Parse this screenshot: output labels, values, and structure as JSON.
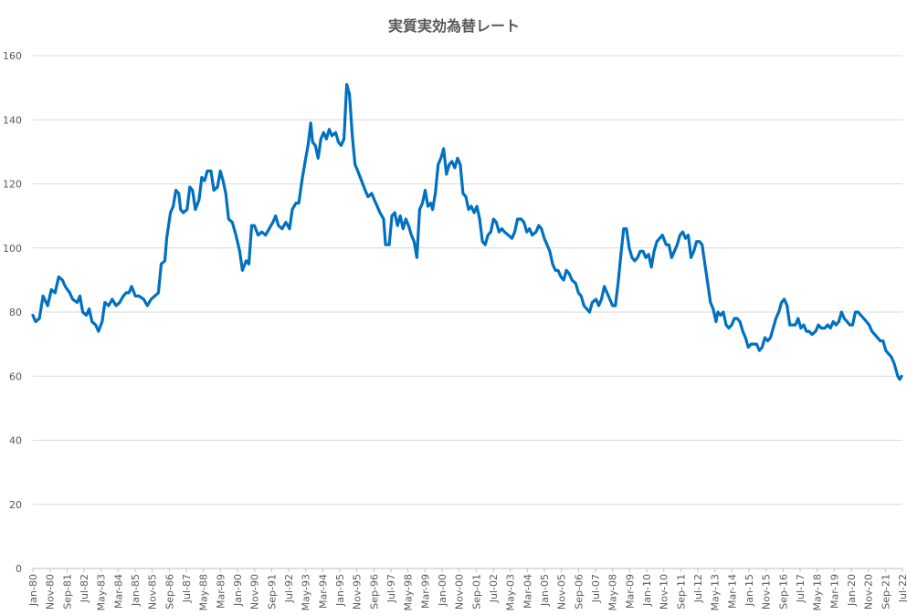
{
  "chart_data": {
    "type": "line",
    "title": "実質実効為替レート",
    "xlabel": "",
    "ylabel": "",
    "ylim": [
      0,
      160
    ],
    "yticks": [
      0,
      20,
      40,
      60,
      80,
      100,
      120,
      140,
      160
    ],
    "grid": true,
    "legend": "none",
    "series_color": "#0070c0",
    "xtick_labels": [
      "Jan-80",
      "Nov-80",
      "Sep-81",
      "Jul-82",
      "May-83",
      "Mar-84",
      "Jan-85",
      "Nov-85",
      "Sep-86",
      "Jul-87",
      "May-88",
      "Mar-89",
      "Jan-90",
      "Nov-90",
      "Sep-91",
      "Jul-92",
      "May-93",
      "Mar-94",
      "Jan-95",
      "Nov-95",
      "Sep-96",
      "Jul-97",
      "May-98",
      "Mar-99",
      "Jan-00",
      "Nov-00",
      "Sep-01",
      "Jul-02",
      "May-03",
      "Mar-04",
      "Jan-05",
      "Nov-05",
      "Sep-06",
      "Jul-07",
      "May-08",
      "Mar-09",
      "Jan-10",
      "Nov-10",
      "Sep-11",
      "Jul-12",
      "May-13",
      "Mar-14",
      "Jan-15",
      "Nov-15",
      "Sep-16",
      "Jul-17",
      "May-18",
      "Mar-19",
      "Jan-20",
      "Nov-20",
      "Sep-21",
      "Jul-22"
    ],
    "series": [
      {
        "values": [
          [
            1980.0,
            79
          ],
          [
            1980.15,
            77
          ],
          [
            1980.35,
            78
          ],
          [
            1980.55,
            85
          ],
          [
            1980.8,
            82
          ],
          [
            1981.0,
            87
          ],
          [
            1981.2,
            86
          ],
          [
            1981.4,
            91
          ],
          [
            1981.6,
            90
          ],
          [
            1981.75,
            88
          ],
          [
            1982.0,
            86
          ],
          [
            1982.15,
            84
          ],
          [
            1982.4,
            83
          ],
          [
            1982.55,
            85
          ],
          [
            1982.7,
            80
          ],
          [
            1982.9,
            79
          ],
          [
            1983.05,
            81
          ],
          [
            1983.2,
            77
          ],
          [
            1983.4,
            76
          ],
          [
            1983.55,
            74
          ],
          [
            1983.75,
            77
          ],
          [
            1983.9,
            83
          ],
          [
            1984.1,
            82
          ],
          [
            1984.3,
            84
          ],
          [
            1984.5,
            82
          ],
          [
            1984.7,
            83
          ],
          [
            1984.9,
            85
          ],
          [
            1985.05,
            86
          ],
          [
            1985.2,
            86
          ],
          [
            1985.35,
            88
          ],
          [
            1985.55,
            85
          ],
          [
            1985.75,
            85
          ],
          [
            1986.0,
            84
          ],
          [
            1986.2,
            82
          ],
          [
            1986.4,
            84
          ],
          [
            1986.6,
            85
          ],
          [
            1986.8,
            86
          ],
          [
            1986.95,
            95
          ],
          [
            1987.15,
            96
          ],
          [
            1987.25,
            103
          ],
          [
            1987.45,
            111
          ],
          [
            1987.6,
            113
          ],
          [
            1987.75,
            118
          ],
          [
            1987.9,
            117
          ],
          [
            1988.0,
            112
          ],
          [
            1988.15,
            111
          ],
          [
            1988.35,
            112
          ],
          [
            1988.5,
            119
          ],
          [
            1988.65,
            118
          ],
          [
            1988.8,
            112
          ],
          [
            1989.0,
            115
          ],
          [
            1989.15,
            122
          ],
          [
            1989.3,
            121
          ],
          [
            1989.45,
            124
          ],
          [
            1989.65,
            124
          ],
          [
            1989.8,
            118
          ],
          [
            1990.0,
            119
          ],
          [
            1990.15,
            124
          ],
          [
            1990.3,
            121
          ],
          [
            1990.45,
            117
          ],
          [
            1990.6,
            109
          ],
          [
            1990.8,
            108
          ],
          [
            1991.0,
            104
          ],
          [
            1991.2,
            99
          ],
          [
            1991.35,
            93
          ],
          [
            1991.55,
            96
          ],
          [
            1991.7,
            95
          ],
          [
            1991.85,
            107
          ],
          [
            1992.0,
            107
          ],
          [
            1992.2,
            104
          ],
          [
            1992.4,
            105
          ],
          [
            1992.6,
            104
          ],
          [
            1992.8,
            106
          ],
          [
            1993.0,
            108
          ],
          [
            1993.15,
            110
          ],
          [
            1993.3,
            107
          ],
          [
            1993.5,
            106
          ],
          [
            1993.7,
            108
          ],
          [
            1993.9,
            106
          ],
          [
            1994.05,
            112
          ],
          [
            1994.25,
            114
          ],
          [
            1994.4,
            114
          ],
          [
            1994.6,
            122
          ],
          [
            1994.75,
            127
          ],
          [
            1994.9,
            132
          ],
          [
            1995.05,
            139
          ],
          [
            1995.15,
            133
          ],
          [
            1995.3,
            132
          ],
          [
            1995.45,
            128
          ],
          [
            1995.6,
            134
          ],
          [
            1995.75,
            136
          ],
          [
            1995.9,
            134
          ],
          [
            1996.05,
            137
          ],
          [
            1996.2,
            135
          ],
          [
            1996.4,
            136
          ],
          [
            1996.55,
            133
          ],
          [
            1996.7,
            132
          ],
          [
            1996.85,
            134
          ],
          [
            1997.0,
            151
          ],
          [
            1997.15,
            148
          ],
          [
            1997.3,
            135
          ],
          [
            1997.45,
            126
          ],
          [
            1997.6,
            124
          ],
          [
            1997.8,
            121
          ],
          [
            1998.0,
            118
          ],
          [
            1998.15,
            116
          ],
          [
            1998.35,
            117
          ],
          [
            1998.5,
            115
          ],
          [
            1998.65,
            113
          ],
          [
            1998.8,
            111
          ],
          [
            1999.0,
            109
          ],
          [
            1999.1,
            101
          ],
          [
            1999.3,
            101
          ],
          [
            1999.45,
            110
          ],
          [
            1999.6,
            111
          ],
          [
            1999.75,
            107
          ],
          [
            1999.9,
            110
          ],
          [
            2000.05,
            106
          ],
          [
            2000.2,
            109
          ],
          [
            2000.35,
            107
          ],
          [
            2000.5,
            104
          ],
          [
            2000.65,
            102
          ],
          [
            2000.8,
            97
          ],
          [
            2000.95,
            112
          ],
          [
            2001.1,
            114
          ],
          [
            2001.25,
            118
          ],
          [
            2001.4,
            113
          ],
          [
            2001.55,
            114
          ],
          [
            2001.65,
            112
          ],
          [
            2001.8,
            117
          ],
          [
            2001.95,
            126
          ],
          [
            2002.1,
            128
          ],
          [
            2002.25,
            131
          ],
          [
            2002.4,
            123
          ],
          [
            2002.55,
            126
          ],
          [
            2002.7,
            127
          ],
          [
            2002.85,
            125
          ],
          [
            2003.0,
            128
          ],
          [
            2003.15,
            126
          ],
          [
            2003.3,
            117
          ],
          [
            2003.45,
            116
          ],
          [
            2003.6,
            112
          ],
          [
            2003.75,
            113
          ],
          [
            2003.9,
            111
          ],
          [
            2004.05,
            113
          ],
          [
            2004.2,
            109
          ],
          [
            2004.35,
            102
          ],
          [
            2004.5,
            101
          ],
          [
            2004.65,
            104
          ],
          [
            2004.8,
            105
          ],
          [
            2004.95,
            109
          ],
          [
            2005.1,
            108
          ],
          [
            2005.25,
            105
          ],
          [
            2005.4,
            106
          ],
          [
            2005.55,
            105
          ],
          [
            2005.75,
            104
          ],
          [
            2005.95,
            103
          ],
          [
            2006.1,
            105
          ],
          [
            2006.25,
            109
          ],
          [
            2006.45,
            109
          ],
          [
            2006.6,
            108
          ],
          [
            2006.75,
            105
          ],
          [
            2006.9,
            106
          ],
          [
            2007.05,
            104
          ],
          [
            2007.25,
            105
          ],
          [
            2007.4,
            107
          ],
          [
            2007.55,
            106
          ],
          [
            2007.7,
            103
          ],
          [
            2007.85,
            101
          ],
          [
            2008.0,
            99
          ],
          [
            2008.15,
            95
          ],
          [
            2008.3,
            93
          ],
          [
            2008.45,
            93
          ],
          [
            2008.6,
            91
          ],
          [
            2008.75,
            90
          ],
          [
            2008.9,
            93
          ],
          [
            2009.05,
            92
          ],
          [
            2009.2,
            90
          ],
          [
            2009.4,
            89
          ],
          [
            2009.55,
            86
          ],
          [
            2009.7,
            85
          ],
          [
            2009.85,
            82
          ],
          [
            2010.0,
            81
          ],
          [
            2010.15,
            80
          ],
          [
            2010.3,
            83
          ],
          [
            2010.5,
            84
          ],
          [
            2010.65,
            82
          ],
          [
            2010.8,
            84
          ],
          [
            2010.95,
            88
          ],
          [
            2011.1,
            86
          ],
          [
            2011.25,
            84
          ],
          [
            2011.4,
            82
          ],
          [
            2011.55,
            82
          ],
          [
            2011.7,
            89
          ],
          [
            2011.85,
            98
          ],
          [
            2012.0,
            106
          ],
          [
            2012.15,
            106
          ],
          [
            2012.3,
            100
          ],
          [
            2012.45,
            97
          ],
          [
            2012.6,
            96
          ],
          [
            2012.75,
            97
          ],
          [
            2012.9,
            99
          ],
          [
            2013.05,
            99
          ],
          [
            2013.2,
            97
          ],
          [
            2013.35,
            98
          ],
          [
            2013.5,
            94
          ],
          [
            2013.65,
            99
          ],
          [
            2013.8,
            102
          ],
          [
            2013.95,
            103
          ],
          [
            2014.1,
            104
          ],
          [
            2014.3,
            101
          ],
          [
            2014.45,
            101
          ],
          [
            2014.6,
            97
          ],
          [
            2014.75,
            99
          ],
          [
            2014.9,
            101
          ],
          [
            2015.05,
            104
          ],
          [
            2015.2,
            105
          ],
          [
            2015.35,
            103
          ],
          [
            2015.5,
            104
          ],
          [
            2015.65,
            97
          ],
          [
            2015.8,
            99
          ],
          [
            2015.95,
            102
          ],
          [
            2016.1,
            102
          ],
          [
            2016.25,
            101
          ],
          [
            2016.4,
            95
          ],
          [
            2016.55,
            89
          ],
          [
            2016.7,
            83
          ],
          [
            2016.85,
            81
          ],
          [
            2017.0,
            77
          ],
          [
            2017.1,
            80
          ],
          [
            2017.25,
            79
          ],
          [
            2017.4,
            80
          ],
          [
            2017.55,
            76
          ],
          [
            2017.7,
            75
          ],
          [
            2017.85,
            76
          ],
          [
            2018.0,
            78
          ],
          [
            2018.15,
            78
          ],
          [
            2018.3,
            77
          ],
          [
            2018.45,
            74
          ],
          [
            2018.6,
            72
          ],
          [
            2018.75,
            69
          ],
          [
            2018.9,
            70
          ],
          [
            2019.05,
            70
          ],
          [
            2019.2,
            70
          ],
          [
            2019.35,
            68
          ],
          [
            2019.5,
            69
          ],
          [
            2019.65,
            72
          ],
          [
            2019.8,
            71
          ],
          [
            2019.95,
            72
          ],
          [
            2020.1,
            75
          ],
          [
            2020.25,
            78
          ],
          [
            2020.4,
            80
          ],
          [
            2020.55,
            83
          ],
          [
            2020.7,
            84
          ],
          [
            2020.85,
            82
          ],
          [
            2021.0,
            76
          ],
          [
            2021.15,
            76
          ],
          [
            2021.3,
            76
          ],
          [
            2021.45,
            78
          ],
          [
            2021.6,
            75
          ],
          [
            2021.75,
            76
          ],
          [
            2021.9,
            74
          ],
          [
            2022.05,
            74
          ],
          [
            2022.2,
            73
          ],
          [
            2022.4,
            74
          ],
          [
            2022.55,
            76
          ],
          [
            2022.7,
            75
          ],
          [
            2022.9,
            75
          ],
          [
            2023.05,
            76
          ],
          [
            2023.2,
            75
          ],
          [
            2023.35,
            77
          ],
          [
            2023.5,
            76
          ],
          [
            2023.65,
            77
          ],
          [
            2023.8,
            80
          ],
          [
            2023.95,
            78
          ],
          [
            2024.1,
            77
          ],
          [
            2024.25,
            76
          ],
          [
            2024.4,
            76
          ],
          [
            2024.55,
            80
          ],
          [
            2024.7,
            80
          ],
          [
            2024.85,
            79
          ],
          [
            2025.0,
            78
          ],
          [
            2025.15,
            77
          ],
          [
            2025.3,
            76
          ],
          [
            2025.45,
            74
          ],
          [
            2025.6,
            73
          ],
          [
            2025.75,
            72
          ],
          [
            2025.9,
            71
          ],
          [
            2026.05,
            71
          ],
          [
            2026.2,
            68
          ],
          [
            2026.35,
            67
          ],
          [
            2026.5,
            66
          ],
          [
            2026.65,
            64
          ],
          [
            2026.75,
            62
          ],
          [
            2026.85,
            60
          ],
          [
            2026.95,
            59
          ],
          [
            2027.05,
            60
          ]
        ]
      }
    ]
  }
}
